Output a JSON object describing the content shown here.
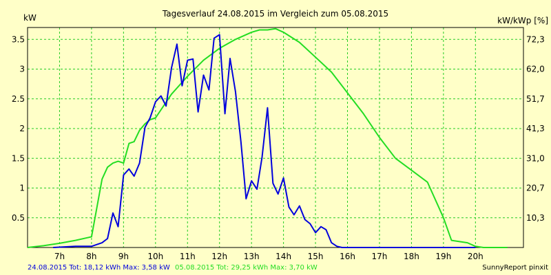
{
  "chart_data": {
    "type": "line",
    "title": "Tagesverlauf 24.08.2015 im Vergleich zum 05.08.2015",
    "ylabel_left": "kW",
    "ylabel_right": "kW/kWp [%]",
    "xlim": [
      6.0,
      21.5
    ],
    "ylim": [
      0,
      3.7
    ],
    "x_ticks": [
      7,
      8,
      9,
      10,
      11,
      12,
      13,
      14,
      15,
      16,
      17,
      18,
      19,
      20
    ],
    "x_tick_labels": [
      "7h",
      "8h",
      "9h",
      "10h",
      "11h",
      "12h",
      "13h",
      "14h",
      "15h",
      "16h",
      "17h",
      "18h",
      "19h",
      "20h"
    ],
    "y_ticks": [
      0.5,
      1,
      1.5,
      2,
      2.5,
      3,
      3.5
    ],
    "y_tick_labels": [
      "0.5",
      "1",
      "1.5",
      "2",
      "2.5",
      "3",
      "3.5"
    ],
    "y2_ticks": [
      0.5,
      1.0,
      1.5,
      2.0,
      2.5,
      3.0,
      3.5
    ],
    "y2_tick_labels": [
      "10,3",
      "20,7",
      "31,0",
      "41,3",
      "51,7",
      "62,0",
      "72,3"
    ],
    "grid": true,
    "series": [
      {
        "name": "24.08.2015",
        "color": "#0000dd",
        "x": [
          6.8,
          7.5,
          8.0,
          8.33,
          8.5,
          8.67,
          8.83,
          9.0,
          9.17,
          9.33,
          9.5,
          9.67,
          9.83,
          10.0,
          10.17,
          10.33,
          10.5,
          10.67,
          10.83,
          11.0,
          11.17,
          11.33,
          11.5,
          11.67,
          11.83,
          12.0,
          12.17,
          12.33,
          12.5,
          12.67,
          12.83,
          13.0,
          13.17,
          13.33,
          13.5,
          13.67,
          13.83,
          14.0,
          14.17,
          14.33,
          14.5,
          14.67,
          14.83,
          15.0,
          15.17,
          15.33,
          15.5,
          15.67,
          15.83,
          16.0,
          16.17,
          16.33,
          16.5,
          16.67,
          16.83,
          17.0,
          17.17,
          17.33,
          17.5,
          17.67,
          17.83,
          18.0,
          18.17,
          18.33,
          18.5,
          18.67,
          18.83,
          19.0,
          19.17,
          19.33,
          19.5,
          19.67,
          19.83,
          20.0
        ],
        "y": [
          0.0,
          0.02,
          0.02,
          0.08,
          0.15,
          0.58,
          0.35,
          1.22,
          1.32,
          1.2,
          1.42,
          2.02,
          2.18,
          2.45,
          2.55,
          2.38,
          3.02,
          3.42,
          2.72,
          3.15,
          3.17,
          2.28,
          2.9,
          2.65,
          3.52,
          3.58,
          2.25,
          3.18,
          2.62,
          1.78,
          0.82,
          1.12,
          0.98,
          1.52,
          2.35,
          1.08,
          0.9,
          1.17,
          0.68,
          0.55,
          0.7,
          0.47,
          0.4,
          0.25,
          0.35,
          0.3,
          0.08,
          0.02,
          0.0,
          0.0,
          0.0,
          0.0,
          0.0,
          0.0,
          0.0,
          0.0,
          0.0,
          0.0,
          0.0,
          0.0,
          0.0,
          0.0,
          0.0,
          0.0,
          0.0,
          0.0,
          0.0,
          0.0,
          0.0,
          0.0,
          0.0,
          0.0,
          0.0,
          0.0
        ],
        "tot": "18,12 kWh",
        "max": "3,58 kW"
      },
      {
        "name": "05.08.2015",
        "color": "#22dd22",
        "x": [
          6.0,
          6.5,
          7.0,
          7.5,
          8.0,
          8.33,
          8.5,
          8.67,
          8.83,
          9.0,
          9.17,
          9.33,
          9.5,
          9.67,
          9.83,
          10.0,
          10.5,
          11.0,
          11.5,
          12.0,
          12.5,
          13.0,
          13.25,
          13.5,
          13.75,
          14.0,
          14.5,
          15.0,
          15.5,
          16.0,
          16.5,
          17.0,
          17.5,
          18.0,
          18.5,
          19.0,
          19.25,
          19.5,
          19.75,
          20.0,
          20.25,
          20.5,
          21.0
        ],
        "y": [
          0.0,
          0.03,
          0.07,
          0.12,
          0.18,
          1.15,
          1.35,
          1.42,
          1.45,
          1.42,
          1.75,
          1.78,
          1.97,
          2.08,
          2.15,
          2.18,
          2.58,
          2.88,
          3.15,
          3.35,
          3.5,
          3.62,
          3.66,
          3.66,
          3.68,
          3.62,
          3.45,
          3.2,
          2.95,
          2.6,
          2.25,
          1.85,
          1.5,
          1.3,
          1.1,
          0.5,
          0.12,
          0.1,
          0.08,
          0.02,
          0.0,
          0.0,
          0.0
        ],
        "tot": "29,25 kWh",
        "max": "3,70 kW"
      }
    ]
  },
  "footer": {
    "series1_text": "24.08.2015 Tot: 18,12 kWh Max: 3,58 kW",
    "series2_text": "05.08.2015 Tot: 29,25 kWh Max: 3,70 kW",
    "brand": "SunnyReport pinxit"
  }
}
